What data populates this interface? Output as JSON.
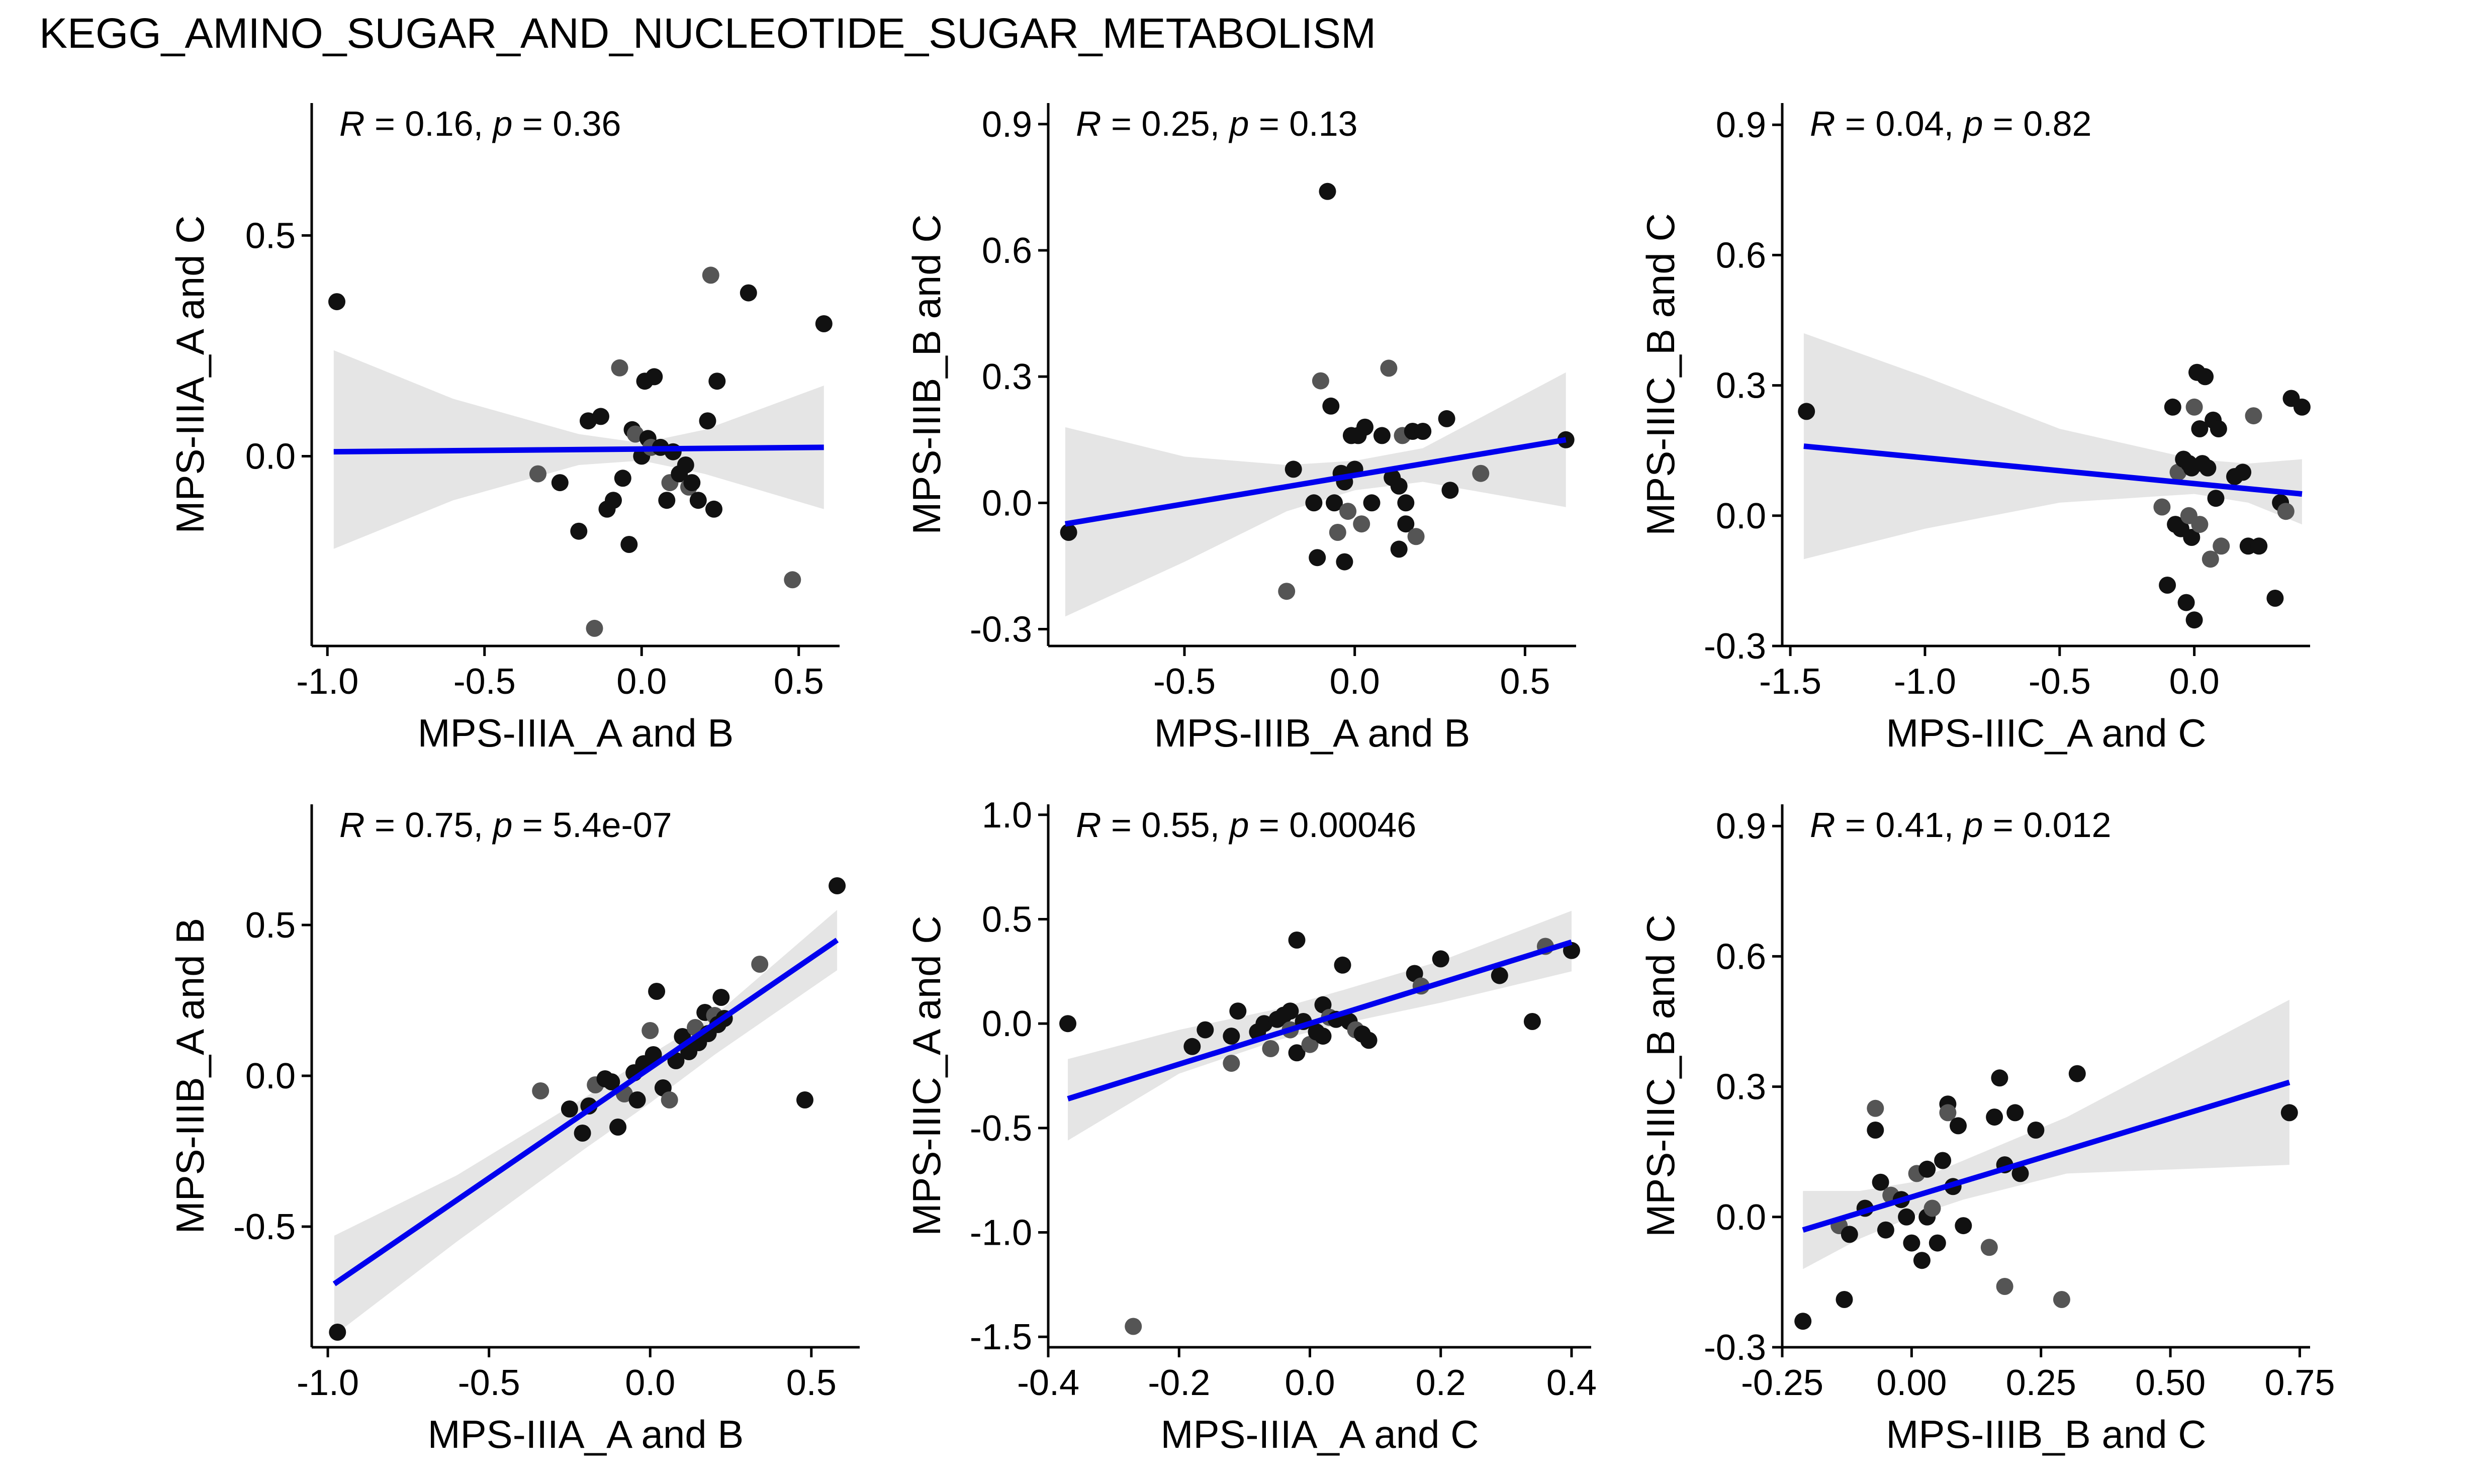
{
  "title": "KEGG_AMINO_SUGAR_AND_NUCLEOTIDE_SUGAR_METABOLISM",
  "colors": {
    "line": "#0000ee",
    "band": "#e5e5e5",
    "point_dark": "#111111",
    "point_mid": "#555555"
  },
  "chart_data": [
    {
      "type": "scatter",
      "xlabel": "MPS-IIIA_A and B",
      "ylabel": "MPS-IIIA_A and C",
      "stat": {
        "r_label": "R",
        "r_value": "= 0.16, ",
        "p_label": "p",
        "p_value": "= 0.36"
      },
      "xlim": [
        -1.05,
        0.63
      ],
      "ylim": [
        -0.43,
        0.8
      ],
      "xticks": [
        -1.0,
        -0.5,
        0.0,
        0.5
      ],
      "xtick_labels": [
        "-1.0",
        "-0.5",
        "0.0",
        "0.5"
      ],
      "yticks": [
        0.0,
        0.5
      ],
      "ytick_labels": [
        "0.0",
        "0.5"
      ],
      "fit": {
        "x": [
          -0.98,
          0.58
        ],
        "y": [
          0.01,
          0.02
        ]
      },
      "band": {
        "x": [
          -0.98,
          -0.6,
          -0.2,
          0.0,
          0.2,
          0.58
        ],
        "lower": [
          -0.21,
          -0.1,
          -0.02,
          -0.01,
          -0.04,
          -0.12
        ],
        "upper": [
          0.24,
          0.13,
          0.05,
          0.03,
          0.06,
          0.16
        ]
      },
      "points": [
        [
          -0.97,
          0.35
        ],
        [
          -0.33,
          -0.04
        ],
        [
          -0.26,
          -0.06
        ],
        [
          -0.2,
          -0.17
        ],
        [
          -0.17,
          0.08
        ],
        [
          -0.15,
          -0.39
        ],
        [
          -0.13,
          0.09
        ],
        [
          -0.11,
          -0.12
        ],
        [
          -0.09,
          -0.1
        ],
        [
          -0.07,
          0.2
        ],
        [
          -0.06,
          -0.05
        ],
        [
          -0.04,
          -0.2
        ],
        [
          -0.03,
          0.06
        ],
        [
          -0.02,
          0.05
        ],
        [
          0.0,
          0.0
        ],
        [
          0.01,
          0.17
        ],
        [
          0.02,
          0.04
        ],
        [
          0.03,
          0.02
        ],
        [
          0.04,
          0.18
        ],
        [
          0.06,
          0.02
        ],
        [
          0.08,
          -0.1
        ],
        [
          0.09,
          -0.06
        ],
        [
          0.1,
          0.01
        ],
        [
          0.12,
          -0.04
        ],
        [
          0.14,
          -0.02
        ],
        [
          0.15,
          -0.07
        ],
        [
          0.16,
          -0.06
        ],
        [
          0.18,
          -0.1
        ],
        [
          0.21,
          0.08
        ],
        [
          0.22,
          0.41
        ],
        [
          0.23,
          -0.12
        ],
        [
          0.24,
          0.17
        ],
        [
          0.34,
          0.37
        ],
        [
          0.48,
          -0.28
        ],
        [
          0.58,
          0.3
        ]
      ]
    },
    {
      "type": "scatter",
      "xlabel": "MPS-IIIB_A and B",
      "ylabel": "MPS-IIIB_B and C",
      "stat": {
        "r_label": "R",
        "r_value": "= 0.25, ",
        "p_label": "p",
        "p_value": "= 0.13"
      },
      "xlim": [
        -0.9,
        0.65
      ],
      "ylim": [
        -0.34,
        0.95
      ],
      "xticks": [
        -0.5,
        0.0,
        0.5
      ],
      "xtick_labels": [
        "-0.5",
        "0.0",
        "0.5"
      ],
      "yticks": [
        -0.3,
        0.0,
        0.3,
        0.6,
        0.9
      ],
      "ytick_labels": [
        "-0.3",
        "0.0",
        "0.3",
        "0.6",
        "0.9"
      ],
      "fit": {
        "x": [
          -0.85,
          0.62
        ],
        "y": [
          -0.05,
          0.15
        ]
      },
      "band": {
        "x": [
          -0.85,
          -0.5,
          -0.2,
          0.0,
          0.2,
          0.62
        ],
        "lower": [
          -0.27,
          -0.14,
          -0.02,
          0.03,
          0.05,
          -0.01
        ],
        "upper": [
          0.18,
          0.11,
          0.09,
          0.1,
          0.13,
          0.31
        ]
      },
      "points": [
        [
          -0.84,
          -0.07
        ],
        [
          -0.2,
          -0.21
        ],
        [
          -0.18,
          0.08
        ],
        [
          -0.12,
          0.0
        ],
        [
          -0.11,
          -0.13
        ],
        [
          -0.1,
          0.29
        ],
        [
          -0.08,
          0.74
        ],
        [
          -0.07,
          0.23
        ],
        [
          -0.06,
          0.0
        ],
        [
          -0.05,
          -0.07
        ],
        [
          -0.04,
          0.07
        ],
        [
          -0.03,
          -0.14
        ],
        [
          -0.03,
          0.05
        ],
        [
          -0.02,
          -0.02
        ],
        [
          -0.01,
          0.16
        ],
        [
          0.0,
          0.08
        ],
        [
          0.01,
          0.16
        ],
        [
          0.02,
          -0.05
        ],
        [
          0.03,
          0.18
        ],
        [
          0.05,
          0.0
        ],
        [
          0.08,
          0.16
        ],
        [
          0.1,
          0.32
        ],
        [
          0.11,
          0.06
        ],
        [
          0.13,
          -0.11
        ],
        [
          0.13,
          0.04
        ],
        [
          0.14,
          0.16
        ],
        [
          0.15,
          0.0
        ],
        [
          0.15,
          -0.05
        ],
        [
          0.17,
          0.17
        ],
        [
          0.18,
          -0.08
        ],
        [
          0.2,
          0.17
        ],
        [
          0.27,
          0.2
        ],
        [
          0.28,
          0.03
        ],
        [
          0.37,
          0.07
        ],
        [
          0.62,
          0.15
        ]
      ]
    },
    {
      "type": "scatter",
      "xlabel": "MPS-IIIC_A and C",
      "ylabel": "MPS-IIIC_B and C",
      "stat": {
        "r_label": "R",
        "r_value": "= 0.04, ",
        "p_label": "p",
        "p_value": "= 0.82"
      },
      "xlim": [
        -1.53,
        0.43
      ],
      "ylim": [
        -0.3,
        0.95
      ],
      "xticks": [
        -1.5,
        -1.0,
        -0.5,
        0.0
      ],
      "xtick_labels": [
        "-1.5",
        "-1.0",
        "-0.5",
        "0.0"
      ],
      "yticks": [
        -0.3,
        0.0,
        0.3,
        0.6,
        0.9
      ],
      "ytick_labels": [
        "-0.3",
        "0.0",
        "0.3",
        "0.6",
        "0.9"
      ],
      "fit": {
        "x": [
          -1.45,
          0.4
        ],
        "y": [
          0.16,
          0.05
        ]
      },
      "band": {
        "x": [
          -1.45,
          -1.0,
          -0.5,
          0.0,
          0.2,
          0.4
        ],
        "lower": [
          -0.1,
          -0.03,
          0.03,
          0.05,
          0.03,
          -0.02
        ],
        "upper": [
          0.42,
          0.32,
          0.2,
          0.13,
          0.12,
          0.13
        ]
      },
      "points": [
        [
          -1.44,
          0.24
        ],
        [
          -0.12,
          0.02
        ],
        [
          -0.1,
          -0.16
        ],
        [
          -0.08,
          0.25
        ],
        [
          -0.07,
          -0.02
        ],
        [
          -0.06,
          0.1
        ],
        [
          -0.05,
          -0.03
        ],
        [
          -0.04,
          0.13
        ],
        [
          -0.03,
          -0.2
        ],
        [
          -0.02,
          0.0
        ],
        [
          -0.02,
          0.12
        ],
        [
          -0.01,
          -0.05
        ],
        [
          -0.01,
          0.11
        ],
        [
          0.0,
          0.25
        ],
        [
          0.0,
          -0.24
        ],
        [
          0.01,
          0.33
        ],
        [
          0.02,
          0.2
        ],
        [
          0.02,
          -0.02
        ],
        [
          0.03,
          0.12
        ],
        [
          0.04,
          0.32
        ],
        [
          0.05,
          0.11
        ],
        [
          0.06,
          -0.1
        ],
        [
          0.07,
          0.22
        ],
        [
          0.08,
          0.04
        ],
        [
          0.09,
          0.2
        ],
        [
          0.1,
          -0.07
        ],
        [
          0.15,
          0.09
        ],
        [
          0.18,
          0.1
        ],
        [
          0.2,
          -0.07
        ],
        [
          0.22,
          0.23
        ],
        [
          0.24,
          -0.07
        ],
        [
          0.3,
          -0.19
        ],
        [
          0.32,
          0.03
        ],
        [
          0.34,
          0.01
        ],
        [
          0.36,
          0.27
        ],
        [
          0.4,
          0.25
        ]
      ]
    },
    {
      "type": "scatter",
      "xlabel": "MPS-IIIA_A and B",
      "ylabel": "MPS-IIIB_A and B",
      "stat": {
        "r_label": "R",
        "r_value": "= 0.75, ",
        "p_label": "p",
        "p_value": "= 5.4e-07"
      },
      "xlim": [
        -1.05,
        0.65
      ],
      "ylim": [
        -0.9,
        0.9
      ],
      "xticks": [
        -1.0,
        -0.5,
        0.0,
        0.5
      ],
      "xtick_labels": [
        "-1.0",
        "-0.5",
        "0.0",
        "0.5"
      ],
      "yticks": [
        -0.5,
        0.0,
        0.5
      ],
      "ytick_labels": [
        "-0.5",
        "0.0",
        "0.5"
      ],
      "fit": {
        "x": [
          -0.98,
          0.58
        ],
        "y": [
          -0.69,
          0.45
        ]
      },
      "band": {
        "x": [
          -0.98,
          -0.6,
          -0.2,
          0.0,
          0.2,
          0.58
        ],
        "lower": [
          -0.86,
          -0.55,
          -0.24,
          -0.09,
          0.07,
          0.35
        ],
        "upper": [
          -0.53,
          -0.33,
          -0.07,
          0.07,
          0.2,
          0.55
        ]
      },
      "points": [
        [
          -0.97,
          -0.85
        ],
        [
          -0.34,
          -0.05
        ],
        [
          -0.25,
          -0.11
        ],
        [
          -0.21,
          -0.19
        ],
        [
          -0.19,
          -0.1
        ],
        [
          -0.17,
          -0.03
        ],
        [
          -0.14,
          -0.01
        ],
        [
          -0.12,
          -0.02
        ],
        [
          -0.1,
          -0.17
        ],
        [
          -0.08,
          -0.06
        ],
        [
          -0.05,
          0.01
        ],
        [
          -0.04,
          -0.08
        ],
        [
          -0.02,
          0.04
        ],
        [
          0.0,
          0.15
        ],
        [
          0.01,
          0.07
        ],
        [
          0.02,
          0.28
        ],
        [
          0.04,
          -0.04
        ],
        [
          0.06,
          -0.08
        ],
        [
          0.08,
          0.05
        ],
        [
          0.1,
          0.13
        ],
        [
          0.12,
          0.08
        ],
        [
          0.14,
          0.16
        ],
        [
          0.15,
          0.11
        ],
        [
          0.17,
          0.21
        ],
        [
          0.18,
          0.14
        ],
        [
          0.2,
          0.2
        ],
        [
          0.21,
          0.17
        ],
        [
          0.22,
          0.26
        ],
        [
          0.23,
          0.19
        ],
        [
          0.34,
          0.37
        ],
        [
          0.48,
          -0.08
        ],
        [
          0.58,
          0.63
        ]
      ]
    },
    {
      "type": "scatter",
      "xlabel": "MPS-IIIA_A and C",
      "ylabel": "MPS-IIIC_A and C",
      "stat": {
        "r_label": "R",
        "r_value": "= 0.55, ",
        "p_label": "p",
        "p_value": "= 0.00046"
      },
      "xlim": [
        -0.4,
        0.43
      ],
      "ylim": [
        -1.55,
        1.05
      ],
      "xticks": [
        -0.4,
        -0.2,
        0.0,
        0.2,
        0.4
      ],
      "xtick_labels": [
        "-0.4",
        "-0.2",
        "0.0",
        "0.2",
        "0.4"
      ],
      "yticks": [
        -1.5,
        -1.0,
        -0.5,
        0.0,
        0.5,
        1.0
      ],
      "ytick_labels": [
        "-1.5",
        "-1.0",
        "-0.5",
        "0.0",
        "0.5",
        "1.0"
      ],
      "fit": {
        "x": [
          -0.37,
          0.4
        ],
        "y": [
          -0.36,
          0.39
        ]
      },
      "band": {
        "x": [
          -0.37,
          -0.2,
          -0.05,
          0.05,
          0.2,
          0.4
        ],
        "lower": [
          -0.56,
          -0.24,
          -0.08,
          0.0,
          0.1,
          0.25
        ],
        "upper": [
          -0.17,
          -0.03,
          0.07,
          0.16,
          0.3,
          0.54
        ]
      },
      "points": [
        [
          -0.37,
          0.0
        ],
        [
          -0.27,
          -1.45
        ],
        [
          -0.18,
          -0.11
        ],
        [
          -0.16,
          -0.03
        ],
        [
          -0.12,
          -0.06
        ],
        [
          -0.12,
          -0.19
        ],
        [
          -0.11,
          0.06
        ],
        [
          -0.08,
          -0.04
        ],
        [
          -0.07,
          0.0
        ],
        [
          -0.06,
          -0.12
        ],
        [
          -0.05,
          0.02
        ],
        [
          -0.04,
          0.04
        ],
        [
          -0.03,
          0.06
        ],
        [
          -0.03,
          -0.03
        ],
        [
          -0.02,
          0.4
        ],
        [
          -0.02,
          -0.14
        ],
        [
          -0.01,
          0.01
        ],
        [
          0.0,
          -0.1
        ],
        [
          0.01,
          -0.04
        ],
        [
          0.02,
          0.09
        ],
        [
          0.02,
          -0.06
        ],
        [
          0.03,
          0.03
        ],
        [
          0.04,
          0.02
        ],
        [
          0.05,
          0.28
        ],
        [
          0.06,
          0.01
        ],
        [
          0.07,
          -0.03
        ],
        [
          0.08,
          -0.05
        ],
        [
          0.09,
          -0.08
        ],
        [
          0.16,
          0.24
        ],
        [
          0.17,
          0.18
        ],
        [
          0.2,
          0.31
        ],
        [
          0.29,
          0.23
        ],
        [
          0.34,
          0.01
        ],
        [
          0.36,
          0.37
        ],
        [
          0.4,
          0.35
        ]
      ]
    },
    {
      "type": "scatter",
      "xlabel": "MPS-IIIB_B and C",
      "ylabel": "MPS-IIIC_B and C",
      "stat": {
        "r_label": "R",
        "r_value": "= 0.41, ",
        "p_label": "p",
        "p_value": "= 0.012"
      },
      "xlim": [
        -0.25,
        0.77
      ],
      "ylim": [
        -0.3,
        0.95
      ],
      "xticks": [
        -0.25,
        0.0,
        0.25,
        0.5,
        0.75
      ],
      "xtick_labels": [
        "-0.25",
        "0.00",
        "0.25",
        "0.50",
        "0.75"
      ],
      "yticks": [
        -0.3,
        0.0,
        0.3,
        0.6,
        0.9
      ],
      "ytick_labels": [
        "-0.3",
        "0.0",
        "0.3",
        "0.6",
        "0.9"
      ],
      "fit": {
        "x": [
          -0.21,
          0.73
        ],
        "y": [
          -0.03,
          0.31
        ]
      },
      "band": {
        "x": [
          -0.21,
          -0.1,
          0.0,
          0.1,
          0.3,
          0.73
        ],
        "lower": [
          -0.12,
          -0.05,
          0.0,
          0.04,
          0.1,
          0.12
        ],
        "upper": [
          0.06,
          0.06,
          0.08,
          0.13,
          0.23,
          0.5
        ]
      },
      "points": [
        [
          -0.21,
          -0.24
        ],
        [
          -0.14,
          -0.02
        ],
        [
          -0.13,
          -0.19
        ],
        [
          -0.12,
          -0.04
        ],
        [
          -0.09,
          0.02
        ],
        [
          -0.07,
          0.25
        ],
        [
          -0.07,
          0.2
        ],
        [
          -0.06,
          0.08
        ],
        [
          -0.05,
          -0.03
        ],
        [
          -0.04,
          0.05
        ],
        [
          -0.02,
          0.04
        ],
        [
          -0.01,
          0.0
        ],
        [
          0.0,
          -0.06
        ],
        [
          0.01,
          0.1
        ],
        [
          0.02,
          -0.1
        ],
        [
          0.03,
          0.0
        ],
        [
          0.03,
          0.11
        ],
        [
          0.04,
          0.02
        ],
        [
          0.05,
          -0.06
        ],
        [
          0.06,
          0.13
        ],
        [
          0.07,
          0.26
        ],
        [
          0.07,
          0.24
        ],
        [
          0.08,
          0.07
        ],
        [
          0.09,
          0.21
        ],
        [
          0.1,
          -0.02
        ],
        [
          0.15,
          -0.07
        ],
        [
          0.16,
          0.23
        ],
        [
          0.17,
          0.32
        ],
        [
          0.18,
          0.12
        ],
        [
          0.18,
          -0.16
        ],
        [
          0.2,
          0.24
        ],
        [
          0.21,
          0.1
        ],
        [
          0.24,
          0.2
        ],
        [
          0.29,
          -0.19
        ],
        [
          0.32,
          0.33
        ],
        [
          0.73,
          0.24
        ]
      ]
    }
  ]
}
